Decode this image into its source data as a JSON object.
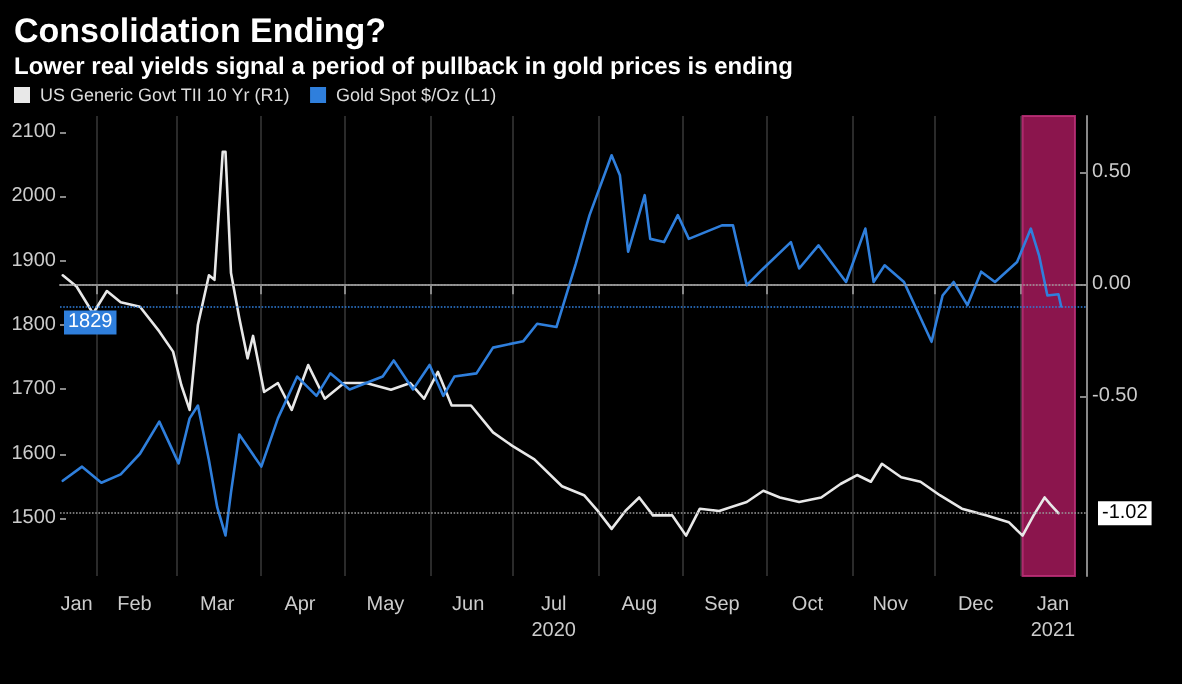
{
  "chart_data": {
    "type": "line",
    "title": "Consolidation Ending?",
    "subtitle": "Lower real yields signal a period of pullback in gold prices is ending",
    "series": [
      {
        "name": "US Generic Govt TII 10 Yr (R1)",
        "color": "#e8e8e8",
        "axis": "y2",
        "x": [
          "2020-01-20",
          "2020-01-25",
          "2020-01-31",
          "2020-02-05",
          "2020-02-10",
          "2020-02-17",
          "2020-02-24",
          "2020-02-29",
          "2020-03-03",
          "2020-03-06",
          "2020-03-09",
          "2020-03-13",
          "2020-03-15",
          "2020-03-18",
          "2020-03-19",
          "2020-03-21",
          "2020-03-24",
          "2020-03-27",
          "2020-03-29",
          "2020-04-02",
          "2020-04-07",
          "2020-04-12",
          "2020-04-18",
          "2020-04-24",
          "2020-05-01",
          "2020-05-09",
          "2020-05-18",
          "2020-05-25",
          "2020-05-30",
          "2020-06-04",
          "2020-06-09",
          "2020-06-16",
          "2020-06-24",
          "2020-07-01",
          "2020-07-09",
          "2020-07-19",
          "2020-07-27",
          "2020-08-01",
          "2020-08-06",
          "2020-08-11",
          "2020-08-16",
          "2020-08-21",
          "2020-08-28",
          "2020-09-02",
          "2020-09-07",
          "2020-09-14",
          "2020-09-24",
          "2020-09-30",
          "2020-10-06",
          "2020-10-13",
          "2020-10-21",
          "2020-10-28",
          "2020-11-03",
          "2020-11-08",
          "2020-11-12",
          "2020-11-19",
          "2020-11-26",
          "2020-12-03",
          "2020-12-11",
          "2020-12-20",
          "2020-12-28",
          "2021-01-02",
          "2021-01-06",
          "2021-01-10",
          "2021-01-12",
          "2021-01-15"
        ],
        "values": [
          0.04,
          -0.01,
          -0.13,
          -0.03,
          -0.08,
          -0.1,
          -0.21,
          -0.3,
          -0.45,
          -0.56,
          -0.18,
          0.04,
          0.02,
          0.59,
          0.59,
          0.05,
          -0.15,
          -0.33,
          -0.23,
          -0.48,
          -0.44,
          -0.56,
          -0.36,
          -0.51,
          -0.44,
          -0.44,
          -0.47,
          -0.44,
          -0.51,
          -0.39,
          -0.54,
          -0.54,
          -0.66,
          -0.72,
          -0.78,
          -0.9,
          -0.94,
          -1.01,
          -1.09,
          -1.01,
          -0.95,
          -1.03,
          -1.03,
          -1.12,
          -1.0,
          -1.01,
          -0.97,
          -0.92,
          -0.95,
          -0.97,
          -0.95,
          -0.89,
          -0.85,
          -0.88,
          -0.8,
          -0.86,
          -0.88,
          -0.94,
          -1.0,
          -1.03,
          -1.06,
          -1.12,
          -1.03,
          -0.95,
          -0.98,
          -1.02
        ]
      },
      {
        "name": "Gold Spot $/Oz (L1)",
        "color": "#2f7fdc",
        "x": [
          "2020-01-20",
          "2020-01-27",
          "2020-02-03",
          "2020-02-10",
          "2020-02-17",
          "2020-02-24",
          "2020-03-02",
          "2020-03-06",
          "2020-03-09",
          "2020-03-13",
          "2020-03-16",
          "2020-03-19",
          "2020-03-21",
          "2020-03-24",
          "2020-04-01",
          "2020-04-07",
          "2020-04-14",
          "2020-04-21",
          "2020-04-26",
          "2020-05-03",
          "2020-05-15",
          "2020-05-19",
          "2020-05-26",
          "2020-06-01",
          "2020-06-06",
          "2020-06-10",
          "2020-06-18",
          "2020-06-24",
          "2020-07-05",
          "2020-07-10",
          "2020-07-17",
          "2020-07-24",
          "2020-07-29",
          "2020-08-06",
          "2020-08-09",
          "2020-08-12",
          "2020-08-18",
          "2020-08-20",
          "2020-08-25",
          "2020-08-30",
          "2020-09-03",
          "2020-09-15",
          "2020-09-19",
          "2020-09-24",
          "2020-09-30",
          "2020-10-10",
          "2020-10-13",
          "2020-10-20",
          "2020-10-30",
          "2020-11-06",
          "2020-11-09",
          "2020-11-13",
          "2020-11-20",
          "2020-11-30",
          "2020-12-04",
          "2020-12-08",
          "2020-12-13",
          "2020-12-18",
          "2020-12-23",
          "2020-12-31",
          "2021-01-05",
          "2021-01-08",
          "2021-01-11",
          "2021-01-15",
          "2021-01-16"
        ],
        "values": [
          1558,
          1580,
          1555,
          1568,
          1600,
          1650,
          1585,
          1655,
          1675,
          1590,
          1517,
          1473,
          1540,
          1630,
          1580,
          1655,
          1720,
          1690,
          1725,
          1700,
          1720,
          1745,
          1700,
          1738,
          1690,
          1720,
          1725,
          1765,
          1775,
          1802,
          1797,
          1895,
          1971,
          2064,
          2033,
          1914,
          2002,
          1934,
          1929,
          1971,
          1934,
          1955,
          1955,
          1862,
          1888,
          1929,
          1888,
          1924,
          1867,
          1950,
          1867,
          1893,
          1867,
          1774,
          1846,
          1867,
          1831,
          1883,
          1867,
          1898,
          1950,
          1908,
          1846,
          1848,
          1829
        ]
      }
    ],
    "xlim": [
      "2020-01-19",
      "2021-01-25"
    ],
    "xticks": [
      {
        "value": "2020-01-25",
        "label": "Jan"
      },
      {
        "value": "2020-02-01",
        "label": null
      },
      {
        "value": "2020-02-15",
        "label": "Feb"
      },
      {
        "value": "2020-03-01",
        "label": null
      },
      {
        "value": "2020-03-16",
        "label": "Mar"
      },
      {
        "value": "2020-04-01",
        "label": null
      },
      {
        "value": "2020-04-15",
        "label": "Apr"
      },
      {
        "value": "2020-05-01",
        "label": null
      },
      {
        "value": "2020-05-16",
        "label": "May"
      },
      {
        "value": "2020-06-01",
        "label": null
      },
      {
        "value": "2020-06-15",
        "label": "Jun"
      },
      {
        "value": "2020-07-01",
        "label": null
      },
      {
        "value": "2020-07-16",
        "label": "Jul\n2020"
      },
      {
        "value": "2020-08-01",
        "label": null
      },
      {
        "value": "2020-08-16",
        "label": "Aug"
      },
      {
        "value": "2020-09-01",
        "label": null
      },
      {
        "value": "2020-09-15",
        "label": "Sep"
      },
      {
        "value": "2020-10-01",
        "label": null
      },
      {
        "value": "2020-10-16",
        "label": "Oct"
      },
      {
        "value": "2020-11-01",
        "label": null
      },
      {
        "value": "2020-11-15",
        "label": "Nov"
      },
      {
        "value": "2020-12-01",
        "label": null
      },
      {
        "value": "2020-12-16",
        "label": "Dec"
      },
      {
        "value": "2021-01-01",
        "label": null
      },
      {
        "value": "2021-01-13",
        "label": "Jan\n2021"
      }
    ],
    "ylim": [
      1410,
      2125
    ],
    "yticks": [
      1500,
      1600,
      1700,
      1800,
      1900,
      2000,
      2100
    ],
    "y2lim": [
      -1.3,
      0.75
    ],
    "y2ticks": [
      {
        "value": 0.5,
        "label": "0.50"
      },
      {
        "value": 0,
        "label": "0.00"
      },
      {
        "value": -0.5,
        "label": "-0.50"
      }
    ],
    "ref_lines": [
      {
        "axis": "y2",
        "value": 0,
        "line_style": "dotted",
        "color": "#9a9a9a"
      },
      {
        "axis": "y2",
        "value": -1.02,
        "label": "-1.02",
        "line_style": "dotted",
        "color": "#9a9a9a"
      },
      {
        "axis": "y",
        "value": 1829,
        "label": "1829",
        "line_style": "dotted",
        "color": "#2f7fdc"
      }
    ],
    "bands": [
      {
        "axis": "x",
        "from": "2021-01-02",
        "to": "2021-01-21",
        "color": "#a3195b"
      }
    ],
    "grid": "x",
    "legend": "top left",
    "line_style": "solid",
    "marker": "none"
  }
}
